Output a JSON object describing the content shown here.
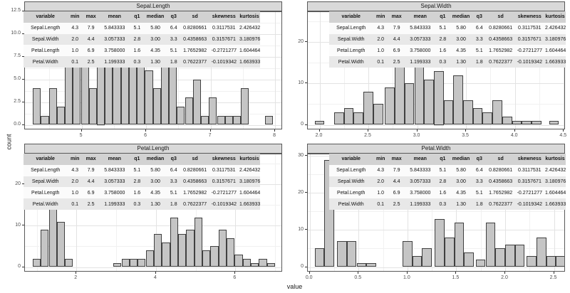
{
  "chart_data": {
    "type": "bar",
    "subtype": "faceted-histograms",
    "xlabel": "value",
    "ylabel": "count",
    "grid": "on",
    "legend": "none",
    "stats_table": {
      "headers": [
        "variable",
        "min",
        "max",
        "mean",
        "q1",
        "median",
        "q3",
        "sd",
        "skewness",
        "kurtosis"
      ],
      "rows": [
        [
          "Sepal.Length",
          "4.3",
          "7.9",
          "5.843333",
          "5.1",
          "5.80",
          "6.4",
          "0.8280661",
          "0.3117531",
          "2.426432"
        ],
        [
          "Sepal.Width",
          "2.0",
          "4.4",
          "3.057333",
          "2.8",
          "3.00",
          "3.3",
          "0.4358663",
          "0.3157671",
          "3.180976"
        ],
        [
          "Petal.Length",
          "1.0",
          "6.9",
          "3.758000",
          "1.6",
          "4.35",
          "5.1",
          "1.7652982",
          "-0.2721277",
          "1.604464"
        ],
        [
          "Petal.Width",
          "0.1",
          "2.5",
          "1.199333",
          "0.3",
          "1.30",
          "1.8",
          "0.7622377",
          "-0.1019342",
          "1.663933"
        ]
      ]
    },
    "facets": [
      {
        "title": "Sepal.Length",
        "x_min": 4.12,
        "x_max": 8.12,
        "y_min": -0.59,
        "y_max": 12.4,
        "x_ticks": [
          "5",
          "6",
          "7",
          "8"
        ],
        "y_ticks": [
          "0.0",
          "2.5",
          "5.0",
          "7.5",
          "10.0",
          "12.5"
        ],
        "bin_width": 0.124,
        "bins": [
          [
            4.243,
            4
          ],
          [
            4.367,
            1
          ],
          [
            4.491,
            4
          ],
          [
            4.615,
            2
          ],
          [
            4.739,
            11
          ],
          [
            4.864,
            10
          ],
          [
            4.988,
            9
          ],
          [
            5.112,
            4
          ],
          [
            5.236,
            7
          ],
          [
            5.36,
            12
          ],
          [
            5.484,
            9
          ],
          [
            5.608,
            10
          ],
          [
            5.732,
            12
          ],
          [
            5.857,
            8
          ],
          [
            5.981,
            6
          ],
          [
            6.105,
            4
          ],
          [
            6.229,
            9
          ],
          [
            6.353,
            8
          ],
          [
            6.477,
            2
          ],
          [
            6.601,
            3
          ],
          [
            6.726,
            5
          ],
          [
            6.85,
            1
          ],
          [
            6.974,
            3
          ],
          [
            7.098,
            1
          ],
          [
            7.222,
            1
          ],
          [
            7.346,
            1
          ],
          [
            7.47,
            4
          ],
          [
            7.843,
            1
          ]
        ]
      },
      {
        "title": "Sepal.Width",
        "x_min": 1.88,
        "x_max": 4.52,
        "y_min": -1.3,
        "y_max": 27.3,
        "x_ticks": [
          "2.0",
          "2.5",
          "3.0",
          "3.5",
          "4.0",
          "4.5"
        ],
        "y_ticks": [
          "0",
          "10",
          "20"
        ],
        "bin_width": 0.1,
        "bins": [
          [
            1.95,
            1
          ],
          [
            2.15,
            3
          ],
          [
            2.25,
            4
          ],
          [
            2.35,
            3
          ],
          [
            2.45,
            8
          ],
          [
            2.55,
            5
          ],
          [
            2.67,
            9
          ],
          [
            2.77,
            14
          ],
          [
            2.87,
            10
          ],
          [
            2.97,
            26
          ],
          [
            3.07,
            11
          ],
          [
            3.17,
            13
          ],
          [
            3.27,
            6
          ],
          [
            3.37,
            12
          ],
          [
            3.47,
            6
          ],
          [
            3.57,
            4
          ],
          [
            3.67,
            3
          ],
          [
            3.77,
            6
          ],
          [
            3.87,
            2
          ],
          [
            3.97,
            1
          ],
          [
            4.07,
            1
          ],
          [
            4.17,
            1
          ],
          [
            4.35,
            1
          ]
        ]
      },
      {
        "title": "Petal.Length",
        "x_min": 0.705,
        "x_max": 7.195,
        "y_min": -1.3,
        "y_max": 27.3,
        "x_ticks": [
          "2",
          "4",
          "6"
        ],
        "y_ticks": [
          "0",
          "10",
          "20"
        ],
        "bin_width": 0.2034,
        "bins": [
          [
            0.898,
            2
          ],
          [
            1.101,
            9
          ],
          [
            1.305,
            26
          ],
          [
            1.508,
            11
          ],
          [
            1.712,
            2
          ],
          [
            2.932,
            1
          ],
          [
            3.135,
            2
          ],
          [
            3.339,
            2
          ],
          [
            3.542,
            2
          ],
          [
            3.746,
            4
          ],
          [
            3.949,
            8
          ],
          [
            4.153,
            6
          ],
          [
            4.356,
            12
          ],
          [
            4.559,
            8
          ],
          [
            4.763,
            9
          ],
          [
            4.966,
            12
          ],
          [
            5.17,
            4
          ],
          [
            5.373,
            5
          ],
          [
            5.576,
            9
          ],
          [
            5.78,
            7
          ],
          [
            5.983,
            3
          ],
          [
            6.187,
            2
          ],
          [
            6.39,
            1
          ],
          [
            6.593,
            2
          ],
          [
            6.797,
            1
          ]
        ]
      },
      {
        "title": "Petal.Width",
        "x_min": -0.02,
        "x_max": 2.62,
        "y_min": -1.45,
        "y_max": 30.45,
        "x_ticks": [
          "0.0",
          "0.5",
          "1.0",
          "1.5",
          "2.0",
          "2.5"
        ],
        "y_ticks": [
          "0",
          "10",
          "20",
          "30"
        ],
        "bin_width": 0.1,
        "bins": [
          [
            0.05,
            5
          ],
          [
            0.15,
            29
          ],
          [
            0.28,
            7
          ],
          [
            0.38,
            7
          ],
          [
            0.48,
            1
          ],
          [
            0.58,
            1
          ],
          [
            0.95,
            7
          ],
          [
            1.05,
            3
          ],
          [
            1.15,
            5
          ],
          [
            1.28,
            13
          ],
          [
            1.38,
            8
          ],
          [
            1.48,
            12
          ],
          [
            1.58,
            4
          ],
          [
            1.7,
            2
          ],
          [
            1.8,
            12
          ],
          [
            1.9,
            5
          ],
          [
            2.0,
            6
          ],
          [
            2.1,
            6
          ],
          [
            2.22,
            3
          ],
          [
            2.32,
            8
          ],
          [
            2.42,
            3
          ],
          [
            2.52,
            3
          ]
        ]
      }
    ],
    "colors": {
      "bar_fill": "#c5c5c5",
      "bar_stroke": "#404040",
      "strip_bg": "#d9d9d9",
      "panel_border": "#595959",
      "grid_major": "#e3e3e3",
      "grid_minor": "#f1f1f1",
      "table_header_bg": "#d2d2d2",
      "table_row_alt_bg": "#e8e8e8",
      "axis_text": "#4d4d4d"
    }
  }
}
